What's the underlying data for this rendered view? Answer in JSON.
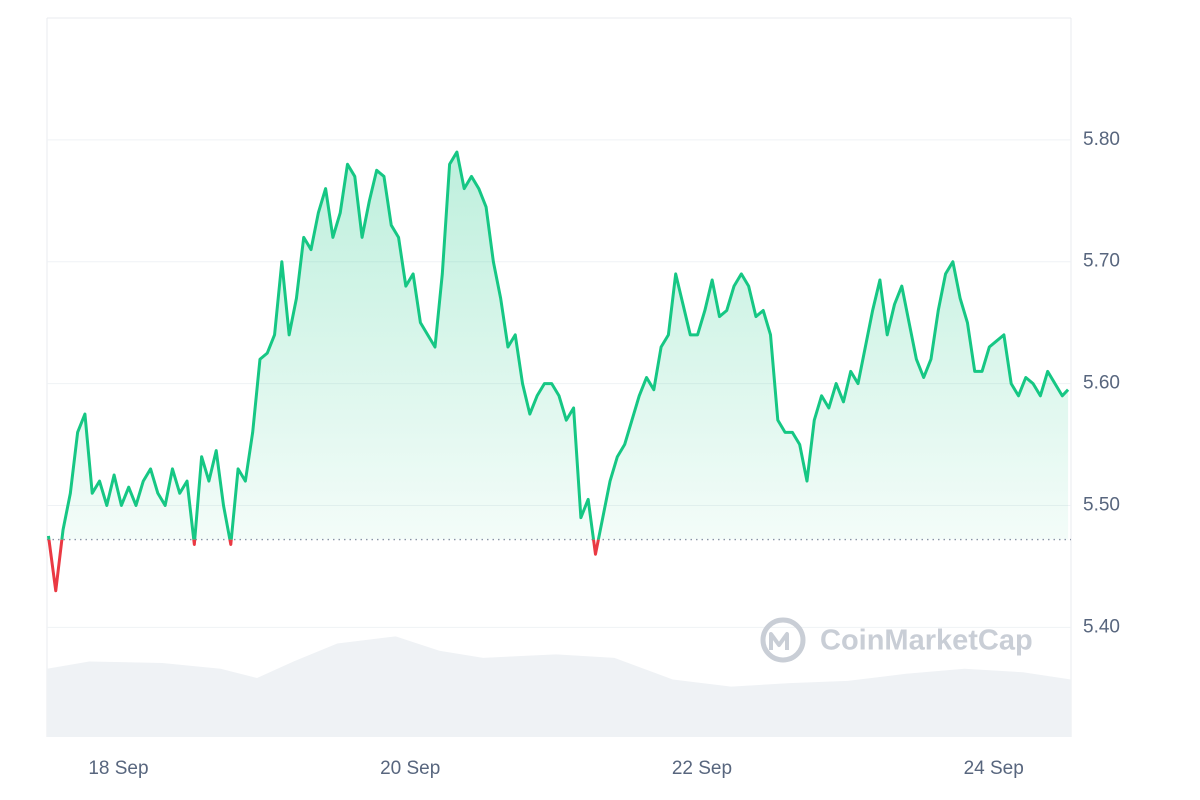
{
  "chart_data": {
    "type": "line",
    "watermark": "CoinMarketCap",
    "color": "#16c784",
    "below_color": "#ea3943",
    "reference_line": 5.472,
    "grid": true,
    "xlim": [
      17.51,
      24.53
    ],
    "ylim": [
      5.31,
      5.9
    ],
    "xticks": [
      {
        "value": 18,
        "label": "18 Sep"
      },
      {
        "value": 20,
        "label": "20 Sep"
      },
      {
        "value": 22,
        "label": "22 Sep"
      },
      {
        "value": 24,
        "label": "24 Sep"
      }
    ],
    "yticks": [
      {
        "value": 5.4,
        "label": "5.40"
      },
      {
        "value": 5.5,
        "label": "5.50"
      },
      {
        "value": 5.6,
        "label": "5.60"
      },
      {
        "value": 5.7,
        "label": "5.70"
      },
      {
        "value": 5.8,
        "label": "5.80"
      }
    ],
    "x": [
      17.52,
      17.57,
      17.62,
      17.67,
      17.72,
      17.77,
      17.82,
      17.87,
      17.92,
      17.97,
      18.02,
      18.07,
      18.12,
      18.17,
      18.22,
      18.27,
      18.32,
      18.37,
      18.42,
      18.47,
      18.52,
      18.57,
      18.62,
      18.67,
      18.72,
      18.77,
      18.82,
      18.87,
      18.92,
      18.97,
      19.02,
      19.07,
      19.12,
      19.17,
      19.22,
      19.27,
      19.32,
      19.37,
      19.42,
      19.47,
      19.52,
      19.57,
      19.62,
      19.67,
      19.72,
      19.77,
      19.82,
      19.87,
      19.92,
      19.97,
      20.02,
      20.07,
      20.12,
      20.17,
      20.22,
      20.27,
      20.32,
      20.37,
      20.42,
      20.47,
      20.52,
      20.57,
      20.62,
      20.67,
      20.72,
      20.77,
      20.82,
      20.87,
      20.92,
      20.97,
      21.02,
      21.07,
      21.12,
      21.17,
      21.22,
      21.27,
      21.32,
      21.37,
      21.42,
      21.47,
      21.52,
      21.57,
      21.62,
      21.67,
      21.72,
      21.77,
      21.82,
      21.87,
      21.92,
      21.97,
      22.02,
      22.07,
      22.12,
      22.17,
      22.22,
      22.27,
      22.32,
      22.37,
      22.42,
      22.47,
      22.52,
      22.57,
      22.62,
      22.67,
      22.72,
      22.77,
      22.82,
      22.87,
      22.92,
      22.97,
      23.02,
      23.07,
      23.12,
      23.17,
      23.22,
      23.27,
      23.32,
      23.37,
      23.42,
      23.47,
      23.52,
      23.57,
      23.62,
      23.67,
      23.72,
      23.77,
      23.82,
      23.87,
      23.92,
      23.97,
      24.02,
      24.07,
      24.12,
      24.17,
      24.22,
      24.27,
      24.32,
      24.37,
      24.42,
      24.47,
      24.51
    ],
    "values": [
      5.475,
      5.43,
      5.48,
      5.51,
      5.56,
      5.575,
      5.51,
      5.52,
      5.5,
      5.525,
      5.5,
      5.515,
      5.5,
      5.52,
      5.53,
      5.51,
      5.5,
      5.53,
      5.51,
      5.52,
      5.468,
      5.54,
      5.52,
      5.545,
      5.5,
      5.468,
      5.53,
      5.52,
      5.56,
      5.62,
      5.625,
      5.64,
      5.7,
      5.64,
      5.67,
      5.72,
      5.71,
      5.74,
      5.76,
      5.72,
      5.74,
      5.78,
      5.77,
      5.72,
      5.75,
      5.775,
      5.77,
      5.73,
      5.72,
      5.68,
      5.69,
      5.65,
      5.64,
      5.63,
      5.69,
      5.78,
      5.79,
      5.76,
      5.77,
      5.76,
      5.745,
      5.7,
      5.67,
      5.63,
      5.64,
      5.6,
      5.575,
      5.59,
      5.6,
      5.6,
      5.59,
      5.57,
      5.58,
      5.49,
      5.505,
      5.46,
      5.49,
      5.52,
      5.54,
      5.55,
      5.57,
      5.59,
      5.605,
      5.595,
      5.63,
      5.64,
      5.69,
      5.665,
      5.64,
      5.64,
      5.66,
      5.685,
      5.655,
      5.66,
      5.68,
      5.69,
      5.68,
      5.655,
      5.66,
      5.64,
      5.57,
      5.56,
      5.56,
      5.55,
      5.52,
      5.57,
      5.59,
      5.58,
      5.6,
      5.585,
      5.61,
      5.6,
      5.63,
      5.66,
      5.685,
      5.64,
      5.665,
      5.68,
      5.65,
      5.62,
      5.605,
      5.62,
      5.66,
      5.69,
      5.7,
      5.67,
      5.65,
      5.61,
      5.61,
      5.63,
      5.635,
      5.64,
      5.6,
      5.59,
      5.605,
      5.6,
      5.59,
      5.61,
      5.6,
      5.59,
      5.595
    ],
    "volume": {
      "color": "#eff2f5",
      "y2lim": [
        0,
        100
      ],
      "x": [
        17.51,
        17.8,
        18.3,
        18.7,
        18.95,
        19.2,
        19.5,
        19.9,
        20.2,
        20.5,
        21.0,
        21.4,
        21.8,
        22.2,
        22.6,
        23.0,
        23.4,
        23.8,
        24.2,
        24.53
      ],
      "values": [
        9.5,
        10.5,
        10.3,
        9.5,
        8.2,
        10.5,
        13,
        14,
        12,
        11,
        11.5,
        11,
        8,
        7,
        7.5,
        7.8,
        8.8,
        9.5,
        9,
        8
      ]
    }
  }
}
